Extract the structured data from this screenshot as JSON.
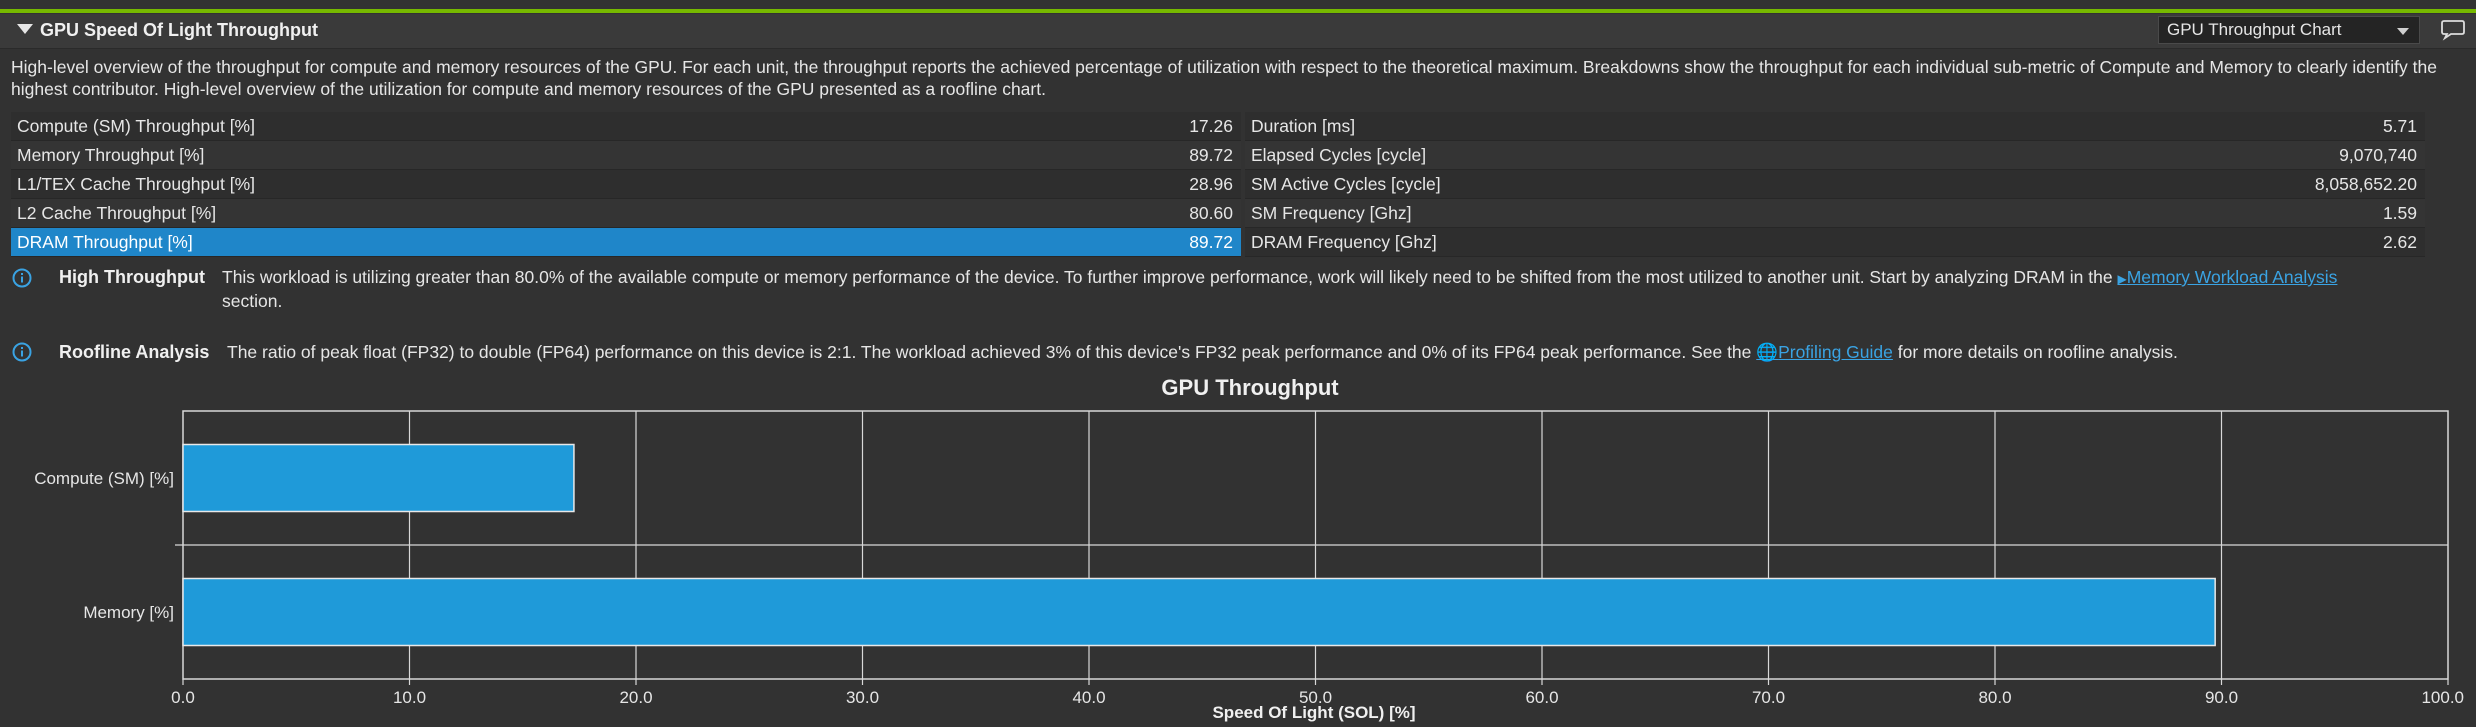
{
  "section": {
    "title": "GPU Speed Of Light Throughput",
    "dropdown_value": "GPU Throughput Chart",
    "description": "High-level overview of the throughput for compute and memory resources of the GPU. For each unit, the throughput reports the achieved percentage of utilization with respect to the theoretical maximum. Breakdowns show the throughput for each individual sub-metric of Compute and Memory to clearly identify the highest contributor. High-level overview of the utilization for compute and memory resources of the GPU presented as a roofline chart."
  },
  "metrics_left": [
    {
      "label": "Compute (SM) Throughput [%]",
      "value": "17.26"
    },
    {
      "label": "Memory Throughput [%]",
      "value": "89.72"
    },
    {
      "label": "L1/TEX Cache Throughput [%]",
      "value": "28.96"
    },
    {
      "label": "L2 Cache Throughput [%]",
      "value": "80.60"
    },
    {
      "label": "DRAM Throughput [%]",
      "value": "89.72"
    }
  ],
  "metrics_right": [
    {
      "label": "Duration [ms]",
      "value": "5.71"
    },
    {
      "label": "Elapsed Cycles [cycle]",
      "value": "9,070,740"
    },
    {
      "label": "SM Active Cycles [cycle]",
      "value": "8,058,652.20"
    },
    {
      "label": "SM Frequency [Ghz]",
      "value": "1.59"
    },
    {
      "label": "DRAM Frequency [Ghz]",
      "value": "2.62"
    }
  ],
  "rules": {
    "high_throughput": {
      "title": "High Throughput",
      "body_line1": "This workload is utilizing greater than 80.0% of the available compute or memory performance of the device. To further improve performance, work will likely need to be shifted from the most utilized to another unit. Start by analyzing DRAM in the",
      "link": "Memory Workload Analysis",
      "body_line2": "section."
    },
    "roofline": {
      "title": "Roofline Analysis",
      "body": "The ratio of peak float (FP32) to double (FP64) performance on this device is 2:1. The workload achieved 3% of this device's FP32 peak performance and 0% of its FP64 peak performance. See the",
      "link": "Profiling Guide",
      "body_after": "for more details on roofline analysis."
    }
  },
  "chart_data": {
    "type": "bar",
    "orientation": "horizontal",
    "title": "GPU Throughput",
    "xlabel": "Speed Of Light (SOL) [%]",
    "ylabel": "",
    "categories": [
      "Compute (SM) [%]",
      "Memory [%]"
    ],
    "values": [
      17.26,
      89.72
    ],
    "xlim": [
      0,
      100
    ],
    "xticks": [
      "0.0",
      "10.0",
      "20.0",
      "30.0",
      "40.0",
      "50.0",
      "60.0",
      "70.0",
      "80.0",
      "90.0",
      "100.0"
    ],
    "grid": true,
    "bar_color": "#1f9ad9"
  }
}
